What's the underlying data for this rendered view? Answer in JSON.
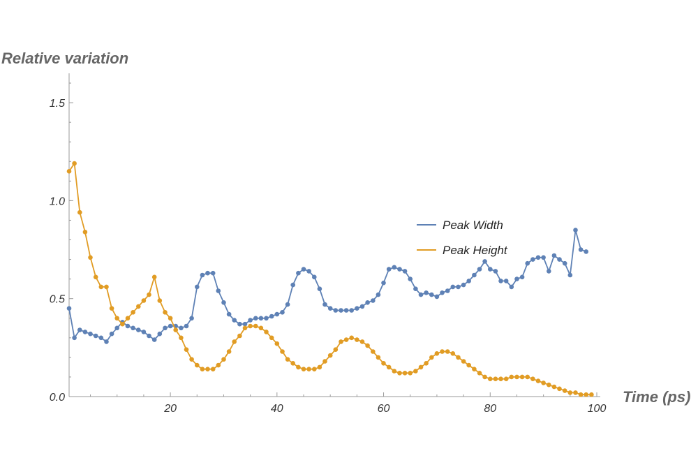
{
  "chart_data": {
    "type": "line",
    "title": "",
    "xlabel": "Time (ps)",
    "ylabel": "Relative variation",
    "xlim": [
      1,
      100
    ],
    "ylim": [
      0,
      1.65
    ],
    "x_ticks": [
      20,
      40,
      60,
      80,
      100
    ],
    "x_tick_labels": [
      "20",
      "40",
      "60",
      "80",
      "100"
    ],
    "y_ticks": [
      0.0,
      0.5,
      1.0,
      1.5
    ],
    "y_tick_labels": [
      "0.0",
      "0.5",
      "1.0",
      "1.5"
    ],
    "legend_position": "right-middle",
    "x": [
      1,
      2,
      3,
      4,
      5,
      6,
      7,
      8,
      9,
      10,
      11,
      12,
      13,
      14,
      15,
      16,
      17,
      18,
      19,
      20,
      21,
      22,
      23,
      24,
      25,
      26,
      27,
      28,
      29,
      30,
      31,
      32,
      33,
      34,
      35,
      36,
      37,
      38,
      39,
      40,
      41,
      42,
      43,
      44,
      45,
      46,
      47,
      48,
      49,
      50,
      51,
      52,
      53,
      54,
      55,
      56,
      57,
      58,
      59,
      60,
      61,
      62,
      63,
      64,
      65,
      66,
      67,
      68,
      69,
      70,
      71,
      72,
      73,
      74,
      75,
      76,
      77,
      78,
      79,
      80,
      81,
      82,
      83,
      84,
      85,
      86,
      87,
      88,
      89,
      90,
      91,
      92,
      93,
      94,
      95,
      96,
      97,
      98,
      99
    ],
    "series": [
      {
        "name": "Peak Width",
        "color": "#5e81b5",
        "values": [
          0.45,
          0.3,
          0.34,
          0.33,
          0.32,
          0.31,
          0.3,
          0.28,
          0.32,
          0.35,
          0.38,
          0.36,
          0.35,
          0.34,
          0.33,
          0.31,
          0.29,
          0.32,
          0.35,
          0.36,
          0.36,
          0.35,
          0.36,
          0.4,
          0.56,
          0.62,
          0.63,
          0.63,
          0.54,
          0.48,
          0.42,
          0.39,
          0.37,
          0.37,
          0.39,
          0.4,
          0.4,
          0.4,
          0.41,
          0.42,
          0.43,
          0.47,
          0.57,
          0.63,
          0.65,
          0.64,
          0.61,
          0.55,
          0.47,
          0.45,
          0.44,
          0.44,
          0.44,
          0.44,
          0.45,
          0.46,
          0.48,
          0.49,
          0.52,
          0.58,
          0.65,
          0.66,
          0.65,
          0.64,
          0.6,
          0.55,
          0.52,
          0.53,
          0.52,
          0.51,
          0.53,
          0.54,
          0.56,
          0.56,
          0.57,
          0.59,
          0.62,
          0.65,
          0.69,
          0.65,
          0.64,
          0.59,
          0.59,
          0.56,
          0.6,
          0.61,
          0.68,
          0.7,
          0.71,
          0.71,
          0.64,
          0.72,
          0.7,
          0.68,
          0.62,
          0.85,
          0.75,
          0.74,
          null
        ]
      },
      {
        "name": "Peak Height",
        "color": "#e19c24",
        "values": [
          1.15,
          1.19,
          0.94,
          0.84,
          0.71,
          0.61,
          0.56,
          0.56,
          0.45,
          0.4,
          0.37,
          0.4,
          0.43,
          0.46,
          0.49,
          0.52,
          0.61,
          0.49,
          0.43,
          0.4,
          0.34,
          0.3,
          0.24,
          0.19,
          0.16,
          0.14,
          0.14,
          0.14,
          0.16,
          0.19,
          0.23,
          0.28,
          0.31,
          0.35,
          0.36,
          0.36,
          0.35,
          0.33,
          0.3,
          0.27,
          0.23,
          0.19,
          0.17,
          0.15,
          0.14,
          0.14,
          0.14,
          0.15,
          0.18,
          0.21,
          0.24,
          0.28,
          0.29,
          0.3,
          0.29,
          0.28,
          0.26,
          0.23,
          0.2,
          0.17,
          0.15,
          0.13,
          0.12,
          0.12,
          0.12,
          0.13,
          0.15,
          0.17,
          0.2,
          0.22,
          0.23,
          0.23,
          0.22,
          0.2,
          0.18,
          0.16,
          0.14,
          0.12,
          0.1,
          0.09,
          0.09,
          0.09,
          0.09,
          0.1,
          0.1,
          0.1,
          0.1,
          0.09,
          0.08,
          0.07,
          0.06,
          0.05,
          0.04,
          0.03,
          0.02,
          0.02,
          0.01,
          0.01,
          0.01
        ]
      }
    ]
  }
}
